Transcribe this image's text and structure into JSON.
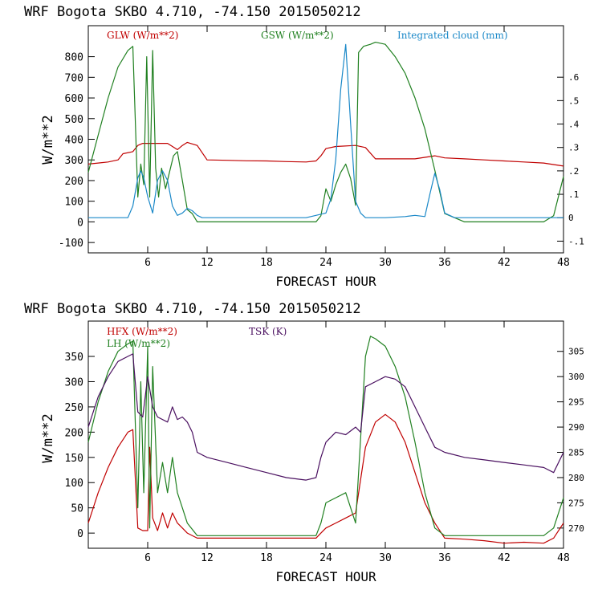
{
  "chart_data": [
    {
      "type": "line",
      "title": "WRF   Bogota SKBO     4.710, -74.150  2015050212",
      "xlabel": "FORECAST HOUR",
      "ylabel": "W/m**2",
      "xlim": [
        0,
        48
      ],
      "ylim": [
        -150,
        950
      ],
      "ylim_right": [
        -0.15,
        0.82
      ],
      "xticks": [
        "6",
        "12",
        "18",
        "24",
        "30",
        "36",
        "42",
        "48"
      ],
      "xtick_values": [
        6,
        12,
        18,
        24,
        30,
        36,
        42,
        48
      ],
      "yticks": [
        "800",
        "700",
        "600",
        "500",
        "400",
        "300",
        "200",
        "100",
        "0",
        "-100"
      ],
      "ytick_values": [
        800,
        700,
        600,
        500,
        400,
        300,
        200,
        100,
        0,
        -100
      ],
      "yticks_right": [
        ".6",
        ".5",
        ".4",
        ".3",
        ".2",
        ".1",
        "0",
        "-.1"
      ],
      "ytick_values_right": [
        0.6,
        0.5,
        0.4,
        0.3,
        0.2,
        0.1,
        0,
        -0.1
      ],
      "series": [
        {
          "name": "GLW (W/m**2)",
          "axis": "left",
          "color": "#c00000",
          "x": [
            0,
            1,
            2,
            3,
            3.5,
            4.5,
            5,
            5.5,
            7,
            8,
            9,
            9.5,
            10,
            11,
            12,
            14,
            16,
            18,
            20,
            22,
            23,
            23.5,
            24,
            25,
            27,
            28,
            29,
            30,
            33,
            35,
            36,
            38,
            40,
            42,
            44,
            46,
            48
          ],
          "y": [
            280,
            285,
            290,
            300,
            330,
            340,
            370,
            380,
            380,
            380,
            350,
            370,
            385,
            370,
            300,
            298,
            296,
            295,
            292,
            290,
            295,
            320,
            355,
            365,
            370,
            360,
            305,
            305,
            305,
            320,
            310,
            305,
            300,
            295,
            290,
            285,
            270
          ]
        },
        {
          "name": "GSW (W/m**2)",
          "axis": "left",
          "color": "#208020",
          "x": [
            0,
            1,
            2,
            3,
            4,
            4.5,
            5,
            5.3,
            5.6,
            5.9,
            6.2,
            6.5,
            6.8,
            7.1,
            7.4,
            7.8,
            8.2,
            8.6,
            9,
            9.5,
            10,
            10.5,
            11,
            12,
            14,
            16,
            18,
            20,
            22,
            23,
            23.5,
            24,
            24.5,
            25,
            25.5,
            26,
            26.5,
            27,
            27.3,
            27.8,
            28.5,
            29,
            30,
            31,
            32,
            33,
            34,
            35,
            36,
            38,
            40,
            42,
            44,
            46,
            47,
            48
          ],
          "y": [
            240,
            420,
            600,
            750,
            830,
            850,
            120,
            280,
            180,
            800,
            120,
            830,
            260,
            120,
            260,
            160,
            240,
            320,
            340,
            200,
            60,
            40,
            0,
            0,
            0,
            0,
            0,
            0,
            0,
            0,
            30,
            160,
            100,
            180,
            240,
            280,
            210,
            80,
            820,
            850,
            860,
            870,
            860,
            800,
            720,
            600,
            450,
            250,
            40,
            0,
            0,
            0,
            0,
            0,
            30,
            220
          ]
        },
        {
          "name": "Integrated cloud (mm)",
          "axis": "right",
          "color": "#1a88c8",
          "x": [
            0,
            4,
            4.5,
            5,
            5.3,
            5.6,
            6,
            6.5,
            7,
            7.5,
            8,
            8.5,
            9,
            9.5,
            10,
            10.5,
            11,
            11.5,
            12,
            18,
            22,
            23,
            24,
            24.5,
            25,
            25.5,
            26,
            26.5,
            27,
            27.5,
            28,
            30,
            32,
            33,
            34,
            34.5,
            35,
            35.5,
            36,
            37,
            40,
            44,
            48
          ],
          "y": [
            0,
            0,
            0.05,
            0.17,
            0.2,
            0.17,
            0.09,
            0.02,
            0.16,
            0.2,
            0.16,
            0.05,
            0.01,
            0.02,
            0.04,
            0.03,
            0.01,
            0,
            0,
            0,
            0,
            0.01,
            0.02,
            0.08,
            0.25,
            0.55,
            0.74,
            0.4,
            0.07,
            0.02,
            0,
            0,
            0.005,
            0.01,
            0.005,
            0.1,
            0.19,
            0.12,
            0.02,
            0,
            0,
            0,
            0
          ]
        }
      ],
      "legend": [
        "GLW (W/m**2)",
        "GSW (W/m**2)",
        "Integrated cloud (mm)"
      ]
    },
    {
      "type": "line",
      "title": "WRF   Bogota SKBO     4.710, -74.150  2015050212",
      "xlabel": "FORECAST HOUR",
      "ylabel": "W/m**2",
      "xlim": [
        0,
        48
      ],
      "ylim": [
        -30,
        420
      ],
      "ylim_right": [
        266,
        311
      ],
      "xticks": [
        "6",
        "12",
        "18",
        "24",
        "30",
        "36",
        "42",
        "48"
      ],
      "xtick_values": [
        6,
        12,
        18,
        24,
        30,
        36,
        42,
        48
      ],
      "yticks": [
        "350",
        "300",
        "250",
        "200",
        "150",
        "100",
        "50",
        "0"
      ],
      "ytick_values": [
        350,
        300,
        250,
        200,
        150,
        100,
        50,
        0
      ],
      "yticks_right": [
        "305",
        "300",
        "295",
        "290",
        "285",
        "280",
        "275",
        "270"
      ],
      "ytick_values_right": [
        305,
        300,
        295,
        290,
        285,
        280,
        275,
        270
      ],
      "series": [
        {
          "name": "HFX (W/m**2)",
          "axis": "left",
          "color": "#c00000",
          "x": [
            0,
            1,
            2,
            3,
            4,
            4.5,
            5,
            5.5,
            6,
            6.2,
            6.5,
            7,
            7.5,
            8,
            8.5,
            9,
            9.5,
            10,
            11,
            12,
            14,
            16,
            18,
            20,
            22,
            23,
            23.5,
            24,
            25,
            26,
            27,
            28,
            29,
            30,
            31,
            32,
            33,
            34,
            35,
            36,
            38,
            40,
            42,
            44,
            46,
            47,
            48
          ],
          "y": [
            20,
            80,
            130,
            170,
            200,
            205,
            10,
            5,
            5,
            170,
            30,
            5,
            40,
            10,
            40,
            20,
            10,
            0,
            -10,
            -10,
            -10,
            -10,
            -10,
            -10,
            -10,
            -10,
            0,
            10,
            20,
            30,
            40,
            170,
            220,
            235,
            220,
            180,
            120,
            60,
            20,
            -10,
            -12,
            -15,
            -20,
            -18,
            -20,
            -10,
            20
          ]
        },
        {
          "name": "LH (W/m**2)",
          "axis": "left",
          "color": "#208020",
          "x": [
            0,
            1,
            2,
            3,
            4,
            4.5,
            5,
            5.3,
            5.6,
            6,
            6.2,
            6.5,
            7,
            7.5,
            8,
            8.5,
            9,
            9.5,
            10,
            11,
            12,
            14,
            16,
            18,
            20,
            22,
            23,
            23.5,
            24,
            25,
            26,
            27,
            28,
            28.5,
            29,
            30,
            31,
            32,
            33,
            34,
            35,
            36,
            38,
            40,
            42,
            44,
            46,
            47,
            48
          ],
          "y": [
            180,
            260,
            320,
            360,
            375,
            380,
            50,
            300,
            80,
            370,
            10,
            330,
            80,
            140,
            80,
            150,
            80,
            50,
            20,
            -5,
            -5,
            -5,
            -5,
            -5,
            -5,
            -5,
            -5,
            20,
            60,
            70,
            80,
            20,
            350,
            390,
            385,
            370,
            330,
            270,
            180,
            80,
            10,
            -5,
            -5,
            -5,
            -5,
            -5,
            -5,
            10,
            70
          ]
        },
        {
          "name": "TSK (K)",
          "axis": "right",
          "color": "#4a1060",
          "x": [
            0,
            1,
            2,
            3,
            4,
            4.5,
            5,
            5.5,
            6,
            6.5,
            7,
            8,
            8.5,
            9,
            9.5,
            10,
            10.5,
            11,
            12,
            14,
            16,
            18,
            20,
            22,
            23,
            23.5,
            24,
            25,
            26,
            27,
            27.5,
            28,
            29,
            30,
            31,
            32,
            33,
            34,
            35,
            36,
            38,
            40,
            42,
            44,
            46,
            47,
            48
          ],
          "y": [
            290,
            296,
            300,
            303,
            304,
            304.5,
            293,
            292,
            300,
            294,
            292,
            291,
            294,
            291.5,
            292,
            291,
            289,
            285,
            284,
            283,
            282,
            281,
            280,
            279.5,
            280,
            284,
            287,
            289,
            288.5,
            290,
            289,
            298,
            299,
            300,
            299.5,
            298,
            294,
            290,
            286,
            285,
            284,
            283.5,
            283,
            282.5,
            282,
            281,
            285
          ]
        }
      ],
      "legend": [
        "HFX (W/m**2)",
        "LH (W/m**2)",
        "TSK (K)"
      ]
    }
  ]
}
